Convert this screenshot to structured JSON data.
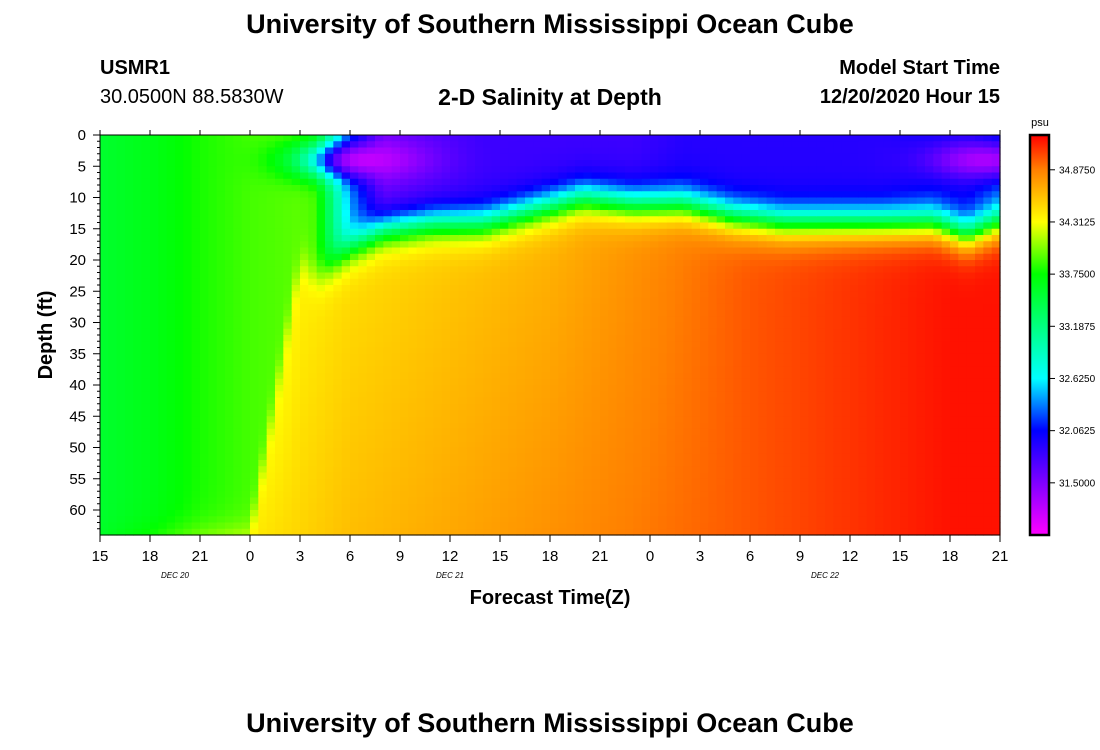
{
  "header": {
    "title": "University of Southern Mississippi Ocean Cube",
    "station_id": "USMR1",
    "station_coords": "30.0500N 88.5830W",
    "plot_title": "2-D Salinity at Depth",
    "start_label": "Model Start Time",
    "start_value": "12/20/2020 Hour 15"
  },
  "footer": {
    "title": "University of Southern Mississippi Ocean Cube"
  },
  "chart_data": {
    "type": "heatmap",
    "title": "2-D Salinity at Depth",
    "xlabel": "Forecast Time(Z)",
    "ylabel": "Depth (ft)",
    "x_tick_labels": [
      "15",
      "18",
      "21",
      "0",
      "3",
      "6",
      "9",
      "12",
      "15",
      "18",
      "21",
      "0",
      "3",
      "6",
      "9",
      "12",
      "15",
      "18",
      "21"
    ],
    "x_range_hours": [
      0,
      54
    ],
    "date_labels": [
      {
        "label": "DEC  20",
        "hour": 4.5
      },
      {
        "label": "DEC  21",
        "hour": 21
      },
      {
        "label": "DEC  22",
        "hour": 43.5
      }
    ],
    "y_ticks": [
      0,
      5,
      10,
      15,
      20,
      25,
      30,
      35,
      40,
      45,
      50,
      55,
      60
    ],
    "ylim": [
      0,
      64
    ],
    "y_inverted": true,
    "colorbar": {
      "unit": "psu",
      "min": 30.9375,
      "max": 35.25,
      "tick_labels": [
        "34.8750",
        "34.3125",
        "33.7500",
        "33.1875",
        "32.6250",
        "32.0625",
        "31.5000"
      ],
      "tick_values": [
        34.875,
        34.3125,
        33.75,
        33.1875,
        32.625,
        32.0625,
        31.5
      ],
      "color_stops": [
        {
          "value": 30.9375,
          "color": "#ff00ff"
        },
        {
          "value": 31.5,
          "color": "#8000ff"
        },
        {
          "value": 32.0625,
          "color": "#0000ff"
        },
        {
          "value": 32.625,
          "color": "#00ffff"
        },
        {
          "value": 33.1875,
          "color": "#00ff80"
        },
        {
          "value": 33.75,
          "color": "#00ff00"
        },
        {
          "value": 34.3125,
          "color": "#ffff00"
        },
        {
          "value": 34.875,
          "color": "#ff8000"
        },
        {
          "value": 35.25,
          "color": "#ff0000"
        }
      ]
    },
    "surface_layer": [
      {
        "hour": 0,
        "depth": 64,
        "mix": 33.55
      },
      {
        "hour": 3,
        "depth": 64,
        "mix": 33.65
      },
      {
        "hour": 6,
        "depth": 64,
        "mix": 33.8
      },
      {
        "hour": 9,
        "depth": 64,
        "mix": 33.9
      },
      {
        "hour": 12,
        "depth": 20,
        "mix": 33.95
      },
      {
        "hour": 13,
        "depth": 23,
        "mix": 33.9
      },
      {
        "hour": 15,
        "depth": 18,
        "mix": 32.4
      },
      {
        "hour": 17,
        "depth": 15,
        "mix": 31.6
      },
      {
        "hour": 20,
        "depth": 14,
        "mix": 31.7
      },
      {
        "hour": 23,
        "depth": 14,
        "mix": 31.8
      },
      {
        "hour": 26,
        "depth": 12,
        "mix": 31.8
      },
      {
        "hour": 29,
        "depth": 10,
        "mix": 31.8
      },
      {
        "hour": 32,
        "depth": 11,
        "mix": 31.8
      },
      {
        "hour": 35,
        "depth": 11,
        "mix": 31.9
      },
      {
        "hour": 38,
        "depth": 13,
        "mix": 31.9
      },
      {
        "hour": 41,
        "depth": 14,
        "mix": 31.9
      },
      {
        "hour": 44,
        "depth": 14,
        "mix": 31.9
      },
      {
        "hour": 47,
        "depth": 14,
        "mix": 31.9
      },
      {
        "hour": 50,
        "depth": 14,
        "mix": 32.0
      },
      {
        "hour": 52,
        "depth": 16,
        "mix": 32.0
      },
      {
        "hour": 54,
        "depth": 14,
        "mix": 32.2
      }
    ],
    "deep_layer": [
      {
        "hour": 0,
        "top": 33.7,
        "bottom": 33.6
      },
      {
        "hour": 3,
        "top": 33.7,
        "bottom": 33.9
      },
      {
        "hour": 6,
        "top": 33.75,
        "bottom": 34.2
      },
      {
        "hour": 9,
        "top": 33.8,
        "bottom": 34.4
      },
      {
        "hour": 12,
        "top": 34.3,
        "bottom": 34.5
      },
      {
        "hour": 15,
        "top": 34.4,
        "bottom": 34.6
      },
      {
        "hour": 18,
        "top": 34.45,
        "bottom": 34.65
      },
      {
        "hour": 21,
        "top": 34.5,
        "bottom": 34.7
      },
      {
        "hour": 24,
        "top": 34.55,
        "bottom": 34.75
      },
      {
        "hour": 27,
        "top": 34.6,
        "bottom": 34.8
      },
      {
        "hour": 30,
        "top": 34.7,
        "bottom": 34.85
      },
      {
        "hour": 33,
        "top": 34.8,
        "bottom": 34.9
      },
      {
        "hour": 36,
        "top": 34.9,
        "bottom": 34.95
      },
      {
        "hour": 39,
        "top": 35.0,
        "bottom": 35.0
      },
      {
        "hour": 42,
        "top": 35.05,
        "bottom": 35.05
      },
      {
        "hour": 45,
        "top": 35.1,
        "bottom": 35.1
      },
      {
        "hour": 48,
        "top": 35.15,
        "bottom": 35.15
      },
      {
        "hour": 51,
        "top": 35.2,
        "bottom": 35.2
      },
      {
        "hour": 54,
        "top": 35.2,
        "bottom": 35.2
      }
    ],
    "low_salinity_core": [
      {
        "hour": 16,
        "depth": 4,
        "value": 31.2
      },
      {
        "hour": 53,
        "depth": 4,
        "value": 31.3
      }
    ]
  }
}
